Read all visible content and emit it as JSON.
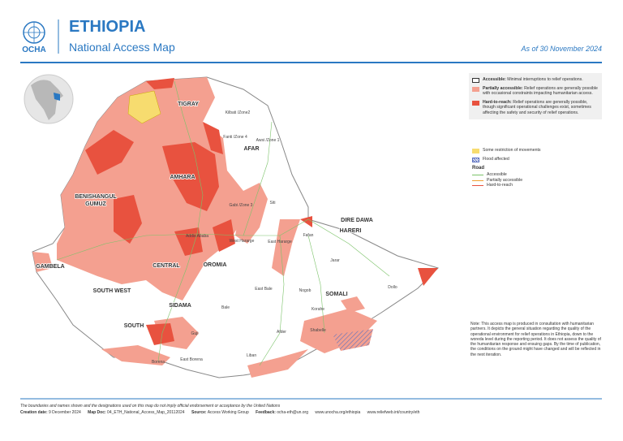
{
  "header": {
    "org": "OCHA",
    "title": "ETHIOPIA",
    "subtitle": "National Access Map",
    "date": "As of 30 November 2024"
  },
  "legend": {
    "access": [
      {
        "term": "Accessible:",
        "text": "Minimal interruptions to relief operations."
      },
      {
        "term": "Partially accessible:",
        "text": "Relief operations are generally possible with occasional constraints impacting humanitarian access."
      },
      {
        "term": "Hard-to-reach:",
        "text": "Relief operations are generally possible, though significant operational challenges exist, sometimes affecting the safety and security of relief operations."
      }
    ],
    "other": [
      "Some restriction of movements",
      "Flood affected"
    ],
    "road_title": "Road",
    "roads": [
      "Accessible",
      "Partially accessible",
      "Hard-to-reach"
    ]
  },
  "map": {
    "regions": [
      "TIGRAY",
      "AFAR",
      "AMHARA",
      "BENISHANGUL",
      "GUMUZ",
      "GAMBELA",
      "OROMIA",
      "CENTRAL",
      "SOUTH WEST",
      "SIDAMA",
      "SOUTH",
      "DIRE DAWA",
      "HARERI",
      "SOMALI"
    ],
    "places": [
      "Addis Ababa",
      "West Hararge",
      "East Hararge",
      "East Bale",
      "Bale",
      "Borena",
      "East Borena",
      "Liban",
      "Afder",
      "Shabelle",
      "Nogob",
      "Korahe",
      "Dollo",
      "Jarar",
      "Fafan",
      "Siti",
      "Guji",
      "Kilbati /Zone2",
      "Awsi /Zone 1",
      "Gabi /Zone 3",
      "Fanti /Zone 4"
    ]
  },
  "note": "Note: This access map is produced in consultation with humanitarian partners. It depicts the general situation regarding the quality of the operational environment for relief operations in Ethiopia, down to the woreda level during the reporting period. It does not assess the quality of the humanitarian response and ensuing gaps. By the time of publication, the conditions on the ground might have changed and will be reflected in the next iteration.",
  "footer": {
    "disclaimer": "The boundaries and names shown and the designations used on this map do not imply official endorsement or acceptance by the United Nations",
    "credits": [
      {
        "term": "Creation date:",
        "text": "9 December 2024"
      },
      {
        "term": "Map Doc:",
        "text": "04_ETH_National_Access_Map_20112024"
      },
      {
        "term": "Source:",
        "text": "Access Working Group"
      },
      {
        "term": "Feedback:",
        "text": "ocha-eth@un.org"
      }
    ],
    "links": [
      "www.unocha.org/ethiopia",
      "www.reliefweb.int/country/eth"
    ]
  }
}
